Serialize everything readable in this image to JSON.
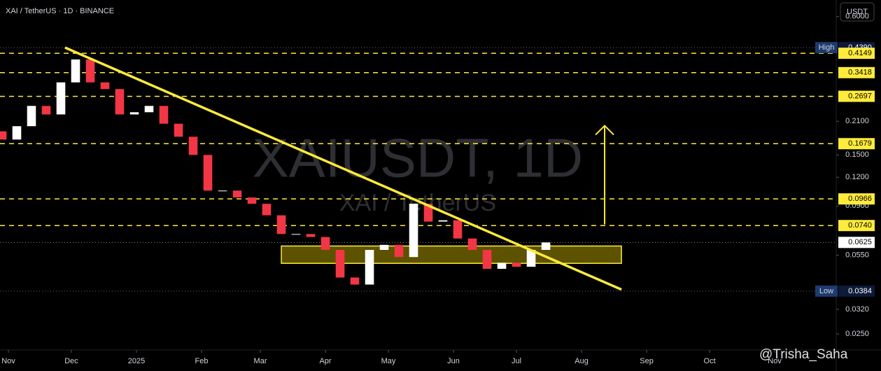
{
  "chart_data": {
    "type": "candlestick",
    "title": "XAI / TetherUS · 1D · BINANCE",
    "watermark": "XAIUSDT, 1D",
    "watermark_subtitle": "XAI / TetherUS",
    "currency": "USDT",
    "credit": "@Trisha_Saha",
    "log_scale": true,
    "color_up": "#ffffff",
    "color_down": "#f23645",
    "x": [
      -3,
      4,
      11,
      18,
      25,
      32,
      39,
      46,
      53,
      60,
      67,
      74,
      81,
      88,
      95,
      102,
      109,
      116,
      123,
      130,
      137,
      144,
      151,
      158,
      165,
      172,
      179,
      186,
      193,
      200,
      207,
      214,
      221,
      228,
      235,
      242,
      249,
      256
    ],
    "open": [
      0.19,
      0.175,
      0.2,
      0.245,
      0.225,
      0.31,
      0.39,
      0.31,
      0.29,
      0.225,
      0.23,
      0.245,
      0.205,
      0.18,
      0.15,
      0.105,
      0.105,
      0.098,
      0.092,
      0.082,
      0.068,
      0.068,
      0.066,
      0.058,
      0.044,
      0.041,
      0.058,
      0.061,
      0.054,
      0.092,
      0.077,
      0.078,
      0.065,
      0.058,
      0.048,
      0.051,
      0.049,
      0.058
    ],
    "high": {
      "name": "High",
      "value": 0.439,
      "label": "0.4390"
    },
    "low": {
      "name": "Low",
      "value": 0.0384,
      "label": "0.0384"
    },
    "close": [
      0.175,
      0.2,
      0.245,
      0.225,
      0.31,
      0.39,
      0.31,
      0.29,
      0.225,
      0.23,
      0.245,
      0.205,
      0.18,
      0.15,
      0.105,
      0.105,
      0.098,
      0.092,
      0.082,
      0.068,
      0.068,
      0.066,
      0.058,
      0.044,
      0.041,
      0.058,
      0.061,
      0.054,
      0.092,
      0.077,
      0.078,
      0.065,
      0.058,
      0.048,
      0.051,
      0.049,
      0.058,
      0.0625
    ],
    "xlim": [
      -4,
      394.3
    ],
    "xticks": [
      {
        "value": 0,
        "label": "Nov"
      },
      {
        "value": 30,
        "label": "Dec"
      },
      {
        "value": 61,
        "label": "2025"
      },
      {
        "value": 92,
        "label": "Feb"
      },
      {
        "value": 120,
        "label": "Mar"
      },
      {
        "value": 151,
        "label": "Apr"
      },
      {
        "value": 181,
        "label": "May"
      },
      {
        "value": 212,
        "label": "Jun"
      },
      {
        "value": 242,
        "label": "Jul"
      },
      {
        "value": 273,
        "label": "Aug"
      },
      {
        "value": 304,
        "label": "Sep"
      },
      {
        "value": 334,
        "label": "Oct"
      },
      {
        "value": 365,
        "label": "Nov"
      }
    ],
    "ylim": [
      0.0213,
      0.707
    ],
    "yticks": [
      {
        "value": 0.6,
        "label": "0.6000"
      },
      {
        "value": 0.21,
        "label": "0.2100"
      },
      {
        "value": 0.15,
        "label": "0.1500"
      },
      {
        "value": 0.12,
        "label": "0.1200"
      },
      {
        "value": 0.09,
        "label": "0.0900"
      },
      {
        "value": 0.055,
        "label": "0.0550"
      },
      {
        "value": 0.032,
        "label": "0.0320"
      },
      {
        "value": 0.025,
        "label": "0.0250"
      }
    ],
    "level_color": "#ffeb3b",
    "levels": [
      {
        "value": 0.4149,
        "label": "0.4149"
      },
      {
        "value": 0.3418,
        "label": "0.3418"
      },
      {
        "value": 0.2697,
        "label": "0.2697"
      },
      {
        "value": 0.1679,
        "label": "0.1679"
      },
      {
        "value": 0.0966,
        "label": "0.0966"
      },
      {
        "value": 0.074,
        "label": "0.0740"
      }
    ],
    "price_line": {
      "value": 0.0625,
      "label": "0.0625"
    },
    "trendline": {
      "x": [
        27,
        292
      ],
      "y": [
        0.439,
        0.039
      ],
      "color": "#ffeb3b"
    },
    "zone": {
      "x": [
        130,
        292
      ],
      "y": [
        0.0507,
        0.0603
      ]
    },
    "arrow": {
      "x": 284,
      "y": [
        0.0749,
        0.201
      ]
    }
  }
}
